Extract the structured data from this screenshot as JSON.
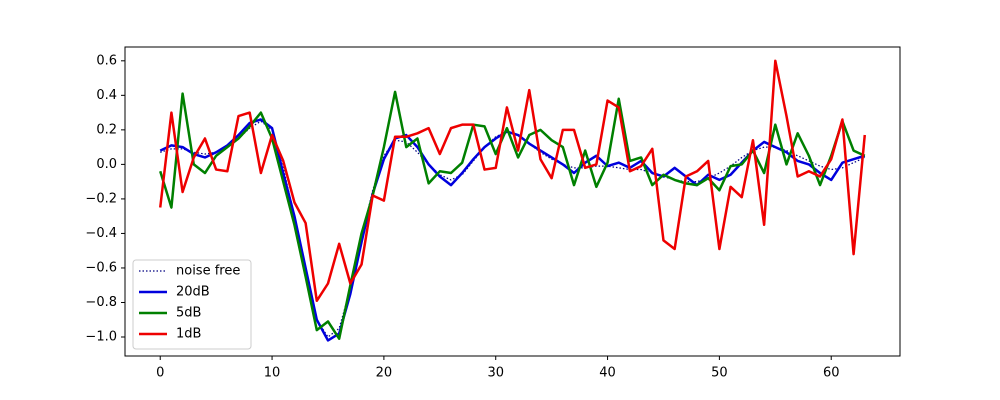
{
  "chart_data": {
    "type": "line",
    "x": [
      0,
      1,
      2,
      3,
      4,
      5,
      6,
      7,
      8,
      9,
      10,
      11,
      12,
      13,
      14,
      15,
      16,
      17,
      18,
      19,
      20,
      21,
      22,
      23,
      24,
      25,
      26,
      27,
      28,
      29,
      30,
      31,
      32,
      33,
      34,
      35,
      36,
      37,
      38,
      39,
      40,
      41,
      42,
      43,
      44,
      45,
      46,
      47,
      48,
      49,
      50,
      51,
      52,
      53,
      54,
      55,
      56,
      57,
      58,
      59,
      60,
      61,
      62,
      63
    ],
    "series": [
      {
        "name": "noise free",
        "color": "#000080",
        "linestyle": "dotted",
        "linewidth": 1,
        "values": [
          0.07,
          0.09,
          0.09,
          0.07,
          0.06,
          0.07,
          0.1,
          0.15,
          0.21,
          0.25,
          0.2,
          -0.02,
          -0.3,
          -0.62,
          -0.9,
          -1.0,
          -0.95,
          -0.72,
          -0.42,
          -0.15,
          0.05,
          0.14,
          0.13,
          0.07,
          0.0,
          -0.06,
          -0.09,
          -0.06,
          0.02,
          0.1,
          0.16,
          0.19,
          0.17,
          0.12,
          0.07,
          0.03,
          0.0,
          -0.02,
          -0.02,
          -0.01,
          -0.01,
          -0.02,
          -0.03,
          -0.03,
          -0.05,
          -0.07,
          -0.09,
          -0.1,
          -0.1,
          -0.08,
          -0.05,
          -0.01,
          0.04,
          0.08,
          0.1,
          0.1,
          0.08,
          0.05,
          0.02,
          -0.01,
          -0.03,
          -0.02,
          0.01,
          0.04
        ]
      },
      {
        "name": "20dB",
        "color": "#0000dd",
        "linestyle": "solid",
        "linewidth": 2,
        "values": [
          0.08,
          0.11,
          0.1,
          0.06,
          0.04,
          0.07,
          0.11,
          0.17,
          0.24,
          0.26,
          0.21,
          -0.05,
          -0.3,
          -0.6,
          -0.9,
          -1.02,
          -0.98,
          -0.75,
          -0.45,
          -0.17,
          0.03,
          0.15,
          0.17,
          0.1,
          0.0,
          -0.07,
          -0.12,
          -0.05,
          0.03,
          0.1,
          0.15,
          0.19,
          0.17,
          0.12,
          0.08,
          0.04,
          0.0,
          -0.05,
          0.01,
          0.05,
          -0.01,
          0.01,
          -0.02,
          0.02,
          -0.05,
          -0.07,
          -0.02,
          -0.07,
          -0.12,
          -0.06,
          -0.09,
          -0.06,
          0.01,
          0.08,
          0.13,
          0.1,
          0.07,
          0.02,
          0.0,
          -0.05,
          -0.09,
          0.01,
          0.03,
          0.05
        ]
      },
      {
        "name": "5dB",
        "color": "#008000",
        "linestyle": "solid",
        "linewidth": 2,
        "values": [
          -0.04,
          -0.25,
          0.41,
          0.0,
          -0.05,
          0.05,
          0.1,
          0.15,
          0.22,
          0.3,
          0.15,
          -0.1,
          -0.35,
          -0.65,
          -0.96,
          -0.91,
          -1.01,
          -0.7,
          -0.4,
          -0.18,
          0.1,
          0.42,
          0.1,
          0.15,
          -0.11,
          -0.04,
          -0.05,
          0.01,
          0.23,
          0.22,
          0.06,
          0.21,
          0.04,
          0.17,
          0.2,
          0.14,
          0.1,
          -0.12,
          0.08,
          -0.13,
          0.01,
          0.38,
          0.02,
          0.04,
          -0.12,
          -0.06,
          -0.09,
          -0.11,
          -0.12,
          -0.08,
          -0.15,
          -0.01,
          0.0,
          0.08,
          -0.05,
          0.23,
          0.0,
          0.18,
          0.05,
          -0.12,
          0.05,
          0.25,
          0.08,
          0.05
        ]
      },
      {
        "name": "1dB",
        "color": "#ee0000",
        "linestyle": "solid",
        "linewidth": 2,
        "values": [
          -0.25,
          0.3,
          -0.16,
          0.04,
          0.15,
          -0.03,
          -0.04,
          0.28,
          0.3,
          -0.05,
          0.17,
          0.02,
          -0.22,
          -0.34,
          -0.79,
          -0.69,
          -0.46,
          -0.69,
          -0.58,
          -0.18,
          -0.21,
          0.16,
          0.16,
          0.18,
          0.21,
          0.06,
          0.21,
          0.23,
          0.23,
          -0.03,
          -0.02,
          0.33,
          0.08,
          0.43,
          0.03,
          -0.08,
          0.2,
          0.2,
          -0.02,
          0.0,
          0.37,
          0.33,
          -0.04,
          -0.01,
          0.09,
          -0.44,
          -0.49,
          -0.07,
          -0.04,
          0.02,
          -0.49,
          -0.13,
          -0.19,
          0.14,
          -0.35,
          0.6,
          0.28,
          -0.07,
          -0.04,
          -0.07,
          0.03,
          0.26,
          -0.52,
          0.17
        ]
      }
    ],
    "xlim": [
      -3.15,
      66.15
    ],
    "xticks": [
      0,
      10,
      20,
      30,
      40,
      50,
      60
    ],
    "ylim": [
      -1.11,
      0.68
    ],
    "yticks": [
      {
        "value": -1.0,
        "label": "−1.0"
      },
      {
        "value": -0.8,
        "label": "−0.8"
      },
      {
        "value": -0.6,
        "label": "−0.6"
      },
      {
        "value": -0.4,
        "label": "−0.4"
      },
      {
        "value": -0.2,
        "label": "−0.2"
      },
      {
        "value": 0.0,
        "label": "0.0"
      },
      0.2,
      0.4,
      0.6
    ],
    "grid": false,
    "legend": "lower left"
  }
}
